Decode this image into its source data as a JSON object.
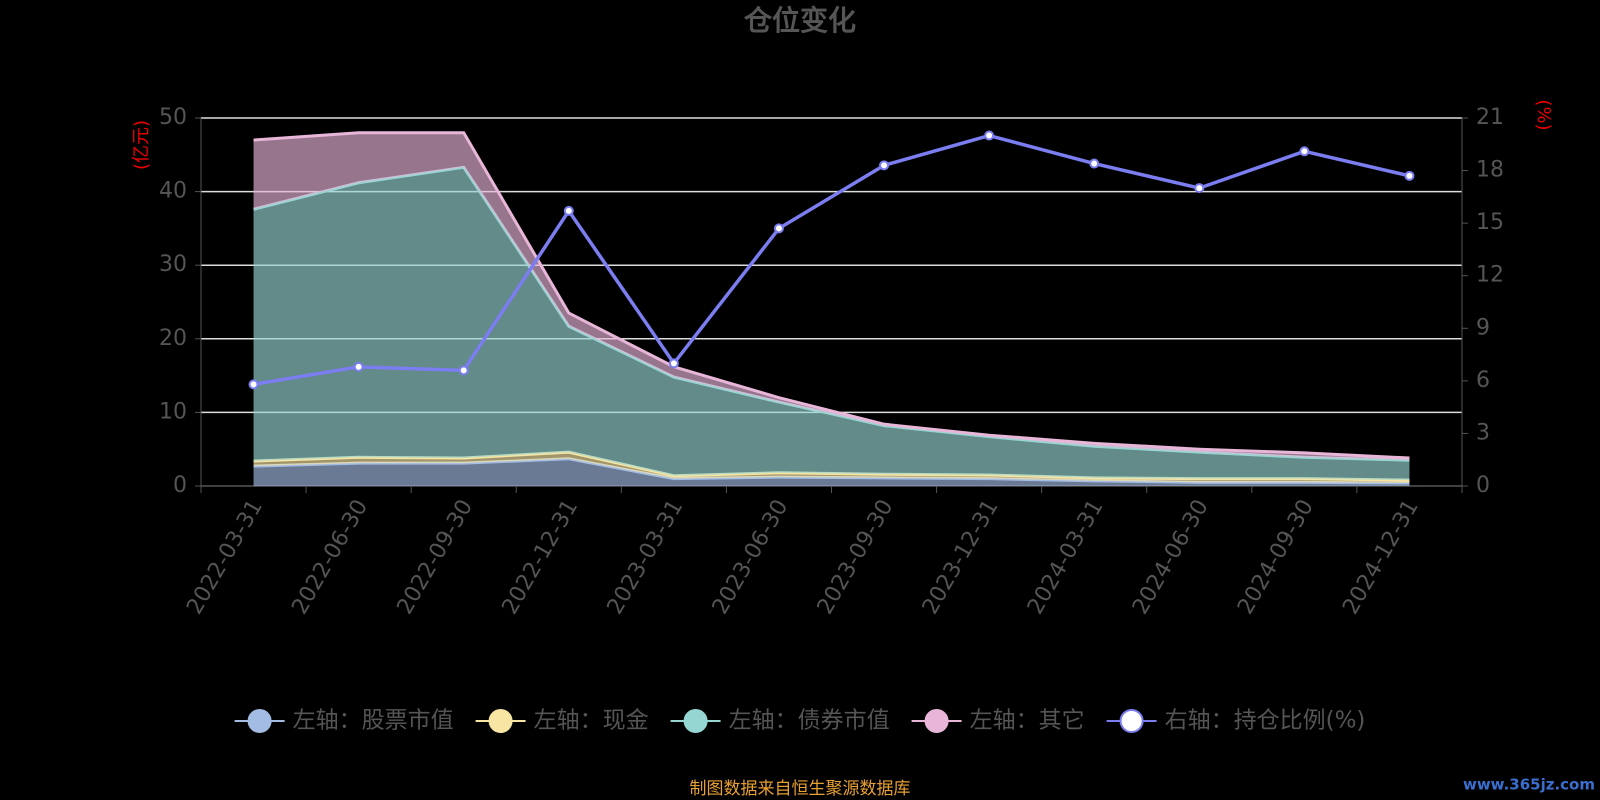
{
  "chart_data": {
    "type": "stacked_area_line",
    "title": "仓位变化",
    "y_axis_label": "(亿元)",
    "y2_axis_label": "(%)",
    "source": "制图数据来自恒生聚源数据库",
    "watermark": "www.365jz.com",
    "categories": [
      "2022-03-31",
      "2022-06-30",
      "2022-09-30",
      "2022-12-31",
      "2023-03-31",
      "2023-06-30",
      "2023-09-30",
      "2023-12-31",
      "2024-03-31",
      "2024-06-30",
      "2024-09-30",
      "2024-12-31"
    ],
    "ylim": [
      0,
      50
    ],
    "yticks": [
      0,
      10,
      20,
      30,
      40,
      50
    ],
    "y2lim": [
      0,
      21
    ],
    "y2ticks": [
      0,
      3,
      6,
      9,
      12,
      15,
      18,
      21
    ],
    "grid": true,
    "legend": "bottom",
    "series": [
      {
        "name": "左轴：股票市值",
        "color": "#a3bce3",
        "values": [
          2.7,
          3.1,
          3.1,
          3.7,
          1.0,
          1.2,
          1.1,
          1.0,
          0.7,
          0.5,
          0.5,
          0.4
        ]
      },
      {
        "name": "左轴：现金",
        "color": "#f8e5a4",
        "values": [
          0.7,
          0.8,
          0.7,
          0.9,
          0.4,
          0.6,
          0.5,
          0.5,
          0.4,
          0.5,
          0.5,
          0.4
        ]
      },
      {
        "name": "左轴：债券市值",
        "color": "#96d6d2",
        "values": [
          34.2,
          37.3,
          39.5,
          17.1,
          13.4,
          9.6,
          6.6,
          5.2,
          4.3,
          3.6,
          2.9,
          2.7
        ]
      },
      {
        "name": "左轴：其它",
        "color": "#e8b6d8",
        "values": [
          9.4,
          6.8,
          4.7,
          1.8,
          1.4,
          0.6,
          0.2,
          0.2,
          0.4,
          0.4,
          0.6,
          0.3
        ]
      },
      {
        "name": "右轴：持仓比例(%)",
        "color": "#7b7df0",
        "axis": "y2",
        "values": [
          5.8,
          6.8,
          6.6,
          15.7,
          7.0,
          14.7,
          18.3,
          20.0,
          18.4,
          17.0,
          19.1,
          17.7
        ]
      }
    ]
  }
}
